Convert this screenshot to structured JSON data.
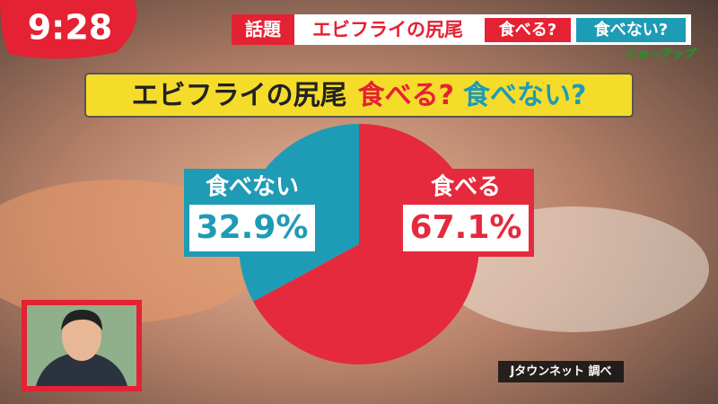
{
  "header": {
    "clock": "9:28",
    "tag": "話題",
    "topic": "エビフライの尻尾",
    "options": [
      "食べる?",
      "食べない?"
    ],
    "logo": "ショーアップ"
  },
  "chart_data": {
    "type": "pie",
    "title": [
      "エビフライの尻尾",
      "食べる?",
      "食べない?"
    ],
    "categories": [
      "食べる",
      "食べない"
    ],
    "values": [
      67.1,
      32.9
    ],
    "value_labels": [
      "67.1%",
      "32.9%"
    ],
    "colors": [
      "#e42a3c",
      "#1e9bb5"
    ],
    "source": "Jタウンネット 調べ"
  }
}
